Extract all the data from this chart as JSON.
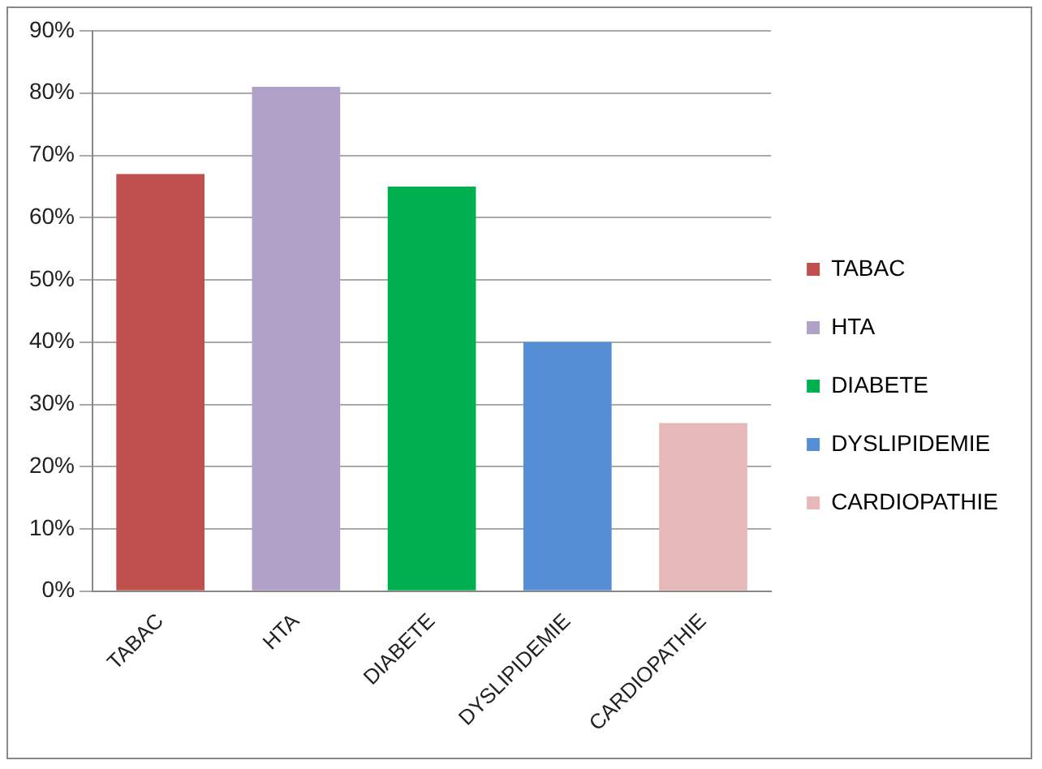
{
  "chart_data": {
    "type": "bar",
    "categories": [
      "TABAC",
      "HTA",
      "DIABETE",
      "DYSLIPIDEMIE",
      "CARDIOPATHIE"
    ],
    "series": [
      {
        "name": "TABAC",
        "color": "#c0504d",
        "values": [
          67,
          null,
          null,
          null,
          null
        ]
      },
      {
        "name": "HTA",
        "color": "#b1a0c7",
        "values": [
          null,
          81,
          null,
          null,
          null
        ]
      },
      {
        "name": "DIABETE",
        "color": "#00b050",
        "values": [
          null,
          null,
          65,
          null,
          null
        ]
      },
      {
        "name": "DYSLIPIDEMIE",
        "color": "#558ed5",
        "values": [
          null,
          null,
          null,
          40,
          null
        ]
      },
      {
        "name": "CARDIOPATHIE",
        "color": "#e6b9b8",
        "values": [
          null,
          null,
          null,
          null,
          27
        ]
      }
    ],
    "ylim": [
      0,
      90
    ],
    "yticks": [
      {
        "value": 0,
        "label": "0%"
      },
      {
        "value": 10,
        "label": "10%"
      },
      {
        "value": 20,
        "label": "20%"
      },
      {
        "value": 30,
        "label": "30%"
      },
      {
        "value": 40,
        "label": "40%"
      },
      {
        "value": 50,
        "label": "50%"
      },
      {
        "value": 60,
        "label": "60%"
      },
      {
        "value": 70,
        "label": "70%"
      },
      {
        "value": 80,
        "label": "80%"
      },
      {
        "value": 90,
        "label": "90%"
      }
    ],
    "grid": "y",
    "legend": "right"
  }
}
